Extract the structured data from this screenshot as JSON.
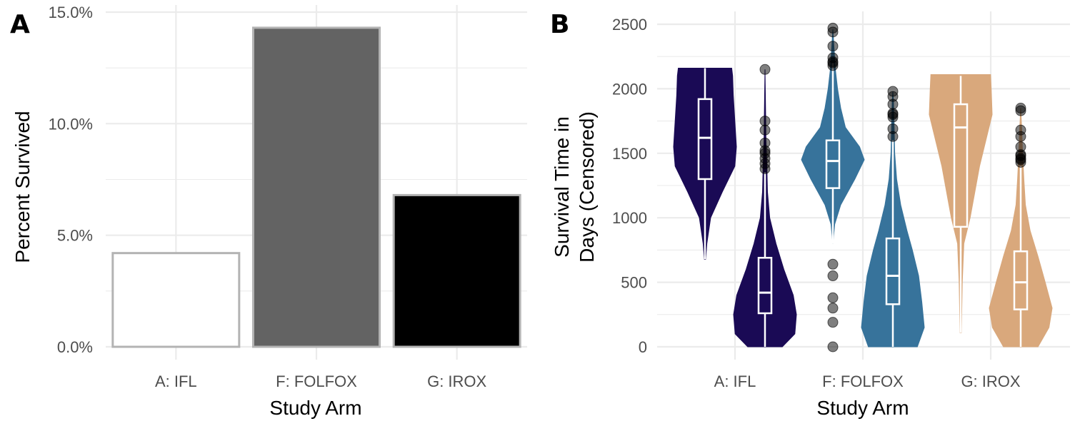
{
  "panels": {
    "a": {
      "tag": "A"
    },
    "b": {
      "tag": "B"
    }
  },
  "chart_data": [
    {
      "type": "bar",
      "xlabel": "Study Arm",
      "ylabel": "Percent Survived",
      "categories": [
        "A: IFL",
        "F: FOLFOX",
        "G: IROX"
      ],
      "values": [
        4.2,
        14.3,
        6.8
      ],
      "ylim": [
        0,
        15
      ],
      "y_ticks": [
        "0.0%",
        "5.0%",
        "10.0%",
        "15.0%"
      ],
      "y_tick_values": [
        0,
        5,
        10,
        15
      ],
      "fill_colors": [
        "#ffffff",
        "#636363",
        "#000000"
      ],
      "outline_color": "#b3b3b3",
      "grid": true
    },
    {
      "type": "violin",
      "xlabel": "Study Arm",
      "ylabel": "Survival Time in Days (Censored)",
      "ylabel_lines": [
        "Survival Time in",
        "Days (Censored)"
      ],
      "categories": [
        "A: IFL",
        "F: FOLFOX",
        "G: IROX"
      ],
      "colors": [
        "#1a0a55",
        "#37739b",
        "#d9a87c"
      ],
      "ylim": [
        0,
        2500
      ],
      "y_ticks": [
        "0",
        "500",
        "1000",
        "1500",
        "2000",
        "2500"
      ],
      "y_tick_values": [
        0,
        500,
        1000,
        1500,
        2000,
        2500
      ],
      "grid": true,
      "series": [
        {
          "arm": "A: IFL",
          "group": "left",
          "box": {
            "q1": 1300,
            "median": 1620,
            "q3": 1920,
            "whisker_low": 680,
            "whisker_high": 2160
          },
          "density": [
            [
              680,
              0.02
            ],
            [
              800,
              0.06
            ],
            [
              1000,
              0.18
            ],
            [
              1200,
              0.55
            ],
            [
              1400,
              0.95
            ],
            [
              1550,
              1.0
            ],
            [
              1750,
              0.95
            ],
            [
              1950,
              0.9
            ],
            [
              2100,
              0.88
            ],
            [
              2160,
              0.85
            ]
          ],
          "outliers": []
        },
        {
          "arm": "A: IFL",
          "group": "right",
          "box": {
            "q1": 260,
            "median": 420,
            "q3": 690,
            "whisker_low": 0,
            "whisker_high": 1350
          },
          "density": [
            [
              0,
              0.55
            ],
            [
              100,
              0.95
            ],
            [
              250,
              1.0
            ],
            [
              400,
              0.9
            ],
            [
              600,
              0.6
            ],
            [
              800,
              0.35
            ],
            [
              1000,
              0.15
            ],
            [
              1200,
              0.08
            ],
            [
              1400,
              0.06
            ],
            [
              1600,
              0.03
            ],
            [
              1800,
              0.02
            ],
            [
              2000,
              0.01
            ],
            [
              2150,
              0.0
            ]
          ],
          "outliers": [
            1380,
            1420,
            1460,
            1500,
            1520,
            1580,
            1680,
            1750,
            2150
          ]
        },
        {
          "arm": "F: FOLFOX",
          "group": "left",
          "box": {
            "q1": 1230,
            "median": 1440,
            "q3": 1600,
            "whisker_low": 800,
            "whisker_high": 2200
          },
          "density": [
            [
              800,
              0.0
            ],
            [
              950,
              0.06
            ],
            [
              1100,
              0.25
            ],
            [
              1300,
              0.7
            ],
            [
              1450,
              1.0
            ],
            [
              1550,
              0.85
            ],
            [
              1700,
              0.4
            ],
            [
              1850,
              0.25
            ],
            [
              2000,
              0.15
            ],
            [
              2150,
              0.08
            ],
            [
              2300,
              0.04
            ],
            [
              2460,
              0.0
            ]
          ],
          "outliers": [
            0,
            190,
            300,
            380,
            550,
            640,
            2180,
            2200,
            2210,
            2240,
            2330,
            2440,
            2470
          ]
        },
        {
          "arm": "F: FOLFOX",
          "group": "right",
          "box": {
            "q1": 330,
            "median": 550,
            "q3": 840,
            "whisker_low": 0,
            "whisker_high": 1600
          },
          "density": [
            [
              0,
              0.78
            ],
            [
              150,
              1.0
            ],
            [
              350,
              0.92
            ],
            [
              550,
              0.82
            ],
            [
              750,
              0.62
            ],
            [
              900,
              0.45
            ],
            [
              1100,
              0.25
            ],
            [
              1300,
              0.12
            ],
            [
              1500,
              0.06
            ],
            [
              1700,
              0.04
            ],
            [
              1900,
              0.02
            ],
            [
              1980,
              0.0
            ]
          ],
          "outliers": [
            1630,
            1690,
            1780,
            1800,
            1810,
            1880,
            1940,
            1980
          ]
        },
        {
          "arm": "G: IROX",
          "group": "left",
          "box": {
            "q1": 930,
            "median": 1700,
            "q3": 1880,
            "whisker_low": 110,
            "whisker_high": 2100
          },
          "density": [
            [
              110,
              0.02
            ],
            [
              500,
              0.05
            ],
            [
              800,
              0.1
            ],
            [
              1000,
              0.3
            ],
            [
              1200,
              0.45
            ],
            [
              1400,
              0.6
            ],
            [
              1600,
              0.8
            ],
            [
              1800,
              1.0
            ],
            [
              2000,
              0.97
            ],
            [
              2110,
              0.95
            ]
          ],
          "outliers": []
        },
        {
          "arm": "G: IROX",
          "group": "right",
          "box": {
            "q1": 290,
            "median": 500,
            "q3": 740,
            "whisker_low": 0,
            "whisker_high": 1400
          },
          "density": [
            [
              0,
              0.55
            ],
            [
              150,
              0.9
            ],
            [
              300,
              1.0
            ],
            [
              500,
              0.78
            ],
            [
              700,
              0.55
            ],
            [
              900,
              0.3
            ],
            [
              1100,
              0.15
            ],
            [
              1300,
              0.1
            ],
            [
              1500,
              0.06
            ],
            [
              1700,
              0.03
            ],
            [
              1850,
              0.0
            ]
          ],
          "outliers": [
            1430,
            1450,
            1460,
            1480,
            1490,
            1550,
            1630,
            1680,
            1830,
            1850
          ]
        }
      ]
    }
  ]
}
